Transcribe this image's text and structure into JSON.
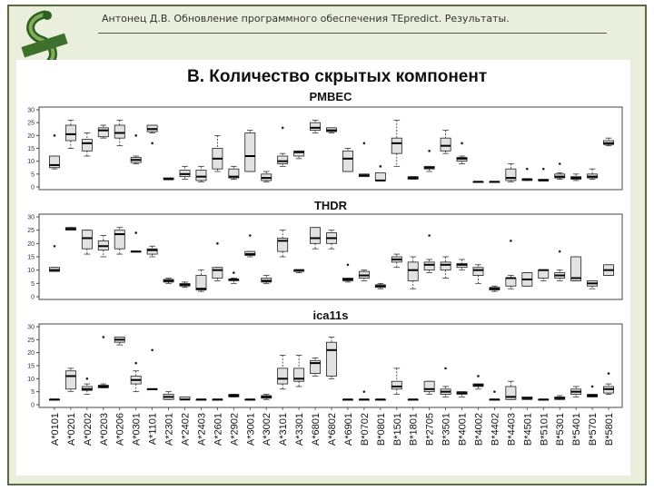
{
  "header": {
    "title": "Антонец Д.В. Обновление программного обеспечения TEpredict. Результаты."
  },
  "chart_data": {
    "type": "boxplot",
    "title": "B. Количество скрытых компонент",
    "categories": [
      "A*0101",
      "A*0201",
      "A*0202",
      "A*0203",
      "A*0206",
      "A*0301",
      "A*1101",
      "A*2301",
      "A*2402",
      "A*2403",
      "A*2601",
      "A*2902",
      "A*3001",
      "A*3002",
      "A*3101",
      "A*3301",
      "A*6801",
      "A*6802",
      "A*6901",
      "B*0702",
      "B*0801",
      "B*1501",
      "B*1801",
      "B*2705",
      "B*3501",
      "B*4001",
      "B*4002",
      "B*4402",
      "B*4403",
      "B*4501",
      "B*5101",
      "B*5301",
      "B*5401",
      "B*5701",
      "B*5801"
    ],
    "ylim": [
      0,
      30
    ],
    "yticks": [
      0,
      5,
      10,
      15,
      20,
      25,
      30
    ],
    "panels": [
      {
        "title": "PMBEC",
        "boxes": [
          {
            "min": 7,
            "q1": 7.5,
            "med": 8.5,
            "q3": 12,
            "max": 12,
            "out": [
              20
            ]
          },
          {
            "min": 15,
            "q1": 18,
            "med": 20.5,
            "q3": 24,
            "max": 26,
            "out": []
          },
          {
            "min": 12,
            "q1": 14,
            "med": 17,
            "q3": 18.5,
            "max": 21,
            "out": []
          },
          {
            "min": 19,
            "q1": 19.5,
            "med": 22,
            "q3": 23,
            "max": 24,
            "out": []
          },
          {
            "min": 16,
            "q1": 19,
            "med": 21,
            "q3": 24,
            "max": 26,
            "out": []
          },
          {
            "min": 9,
            "q1": 9.5,
            "med": 10.5,
            "q3": 11.5,
            "max": 12,
            "out": [
              20
            ]
          },
          {
            "min": 21,
            "q1": 21.5,
            "med": 22.5,
            "q3": 24,
            "max": 24,
            "out": [
              17
            ]
          },
          {
            "min": 3,
            "q1": 3,
            "med": 3,
            "q3": 3.5,
            "max": 3.5,
            "out": []
          },
          {
            "min": 3,
            "q1": 4,
            "med": 5,
            "q3": 6.5,
            "max": 8,
            "out": []
          },
          {
            "min": 2,
            "q1": 2.5,
            "med": 4,
            "q3": 6.5,
            "max": 8,
            "out": []
          },
          {
            "min": 6,
            "q1": 7,
            "med": 11,
            "q3": 15,
            "max": 20,
            "out": []
          },
          {
            "min": 3,
            "q1": 3.5,
            "med": 4,
            "q3": 7,
            "max": 8,
            "out": []
          },
          {
            "min": 6,
            "q1": 6,
            "med": 12,
            "q3": 21,
            "max": 22,
            "out": []
          },
          {
            "min": 2,
            "q1": 2.5,
            "med": 3.5,
            "q3": 5,
            "max": 6,
            "out": []
          },
          {
            "min": 8,
            "q1": 9,
            "med": 10,
            "q3": 12,
            "max": 13,
            "out": [
              23
            ]
          },
          {
            "min": 11,
            "q1": 12,
            "med": 13.5,
            "q3": 14,
            "max": 14,
            "out": []
          },
          {
            "min": 21,
            "q1": 22,
            "med": 23,
            "q3": 25,
            "max": 26,
            "out": []
          },
          {
            "min": 21,
            "q1": 21.5,
            "med": 22,
            "q3": 23,
            "max": 23,
            "out": []
          },
          {
            "min": 6,
            "q1": 6,
            "med": 11,
            "q3": 14,
            "max": 15,
            "out": []
          },
          {
            "min": 4,
            "q1": 4,
            "med": 4.5,
            "q3": 5,
            "max": 5,
            "out": [
              17
            ]
          },
          {
            "min": 2.5,
            "q1": 2.5,
            "med": 2.5,
            "q3": 5.5,
            "max": 5.5,
            "out": [
              8
            ]
          },
          {
            "min": 8,
            "q1": 13,
            "med": 17,
            "q3": 19,
            "max": 26,
            "out": []
          },
          {
            "min": 3,
            "q1": 3,
            "med": 3.5,
            "q3": 4,
            "max": 4,
            "out": []
          },
          {
            "min": 6,
            "q1": 7,
            "med": 7.5,
            "q3": 8,
            "max": 8,
            "out": [
              14
            ]
          },
          {
            "min": 13,
            "q1": 14,
            "med": 16,
            "q3": 19,
            "max": 22,
            "out": []
          },
          {
            "min": 9,
            "q1": 10,
            "med": 11,
            "q3": 11.5,
            "max": 12,
            "out": [
              17
            ]
          },
          {
            "min": 2,
            "q1": 2,
            "med": 2,
            "q3": 2,
            "max": 2,
            "out": []
          },
          {
            "min": 2,
            "q1": 2,
            "med": 2,
            "q3": 2,
            "max": 2,
            "out": []
          },
          {
            "min": 2,
            "q1": 2.5,
            "med": 3.5,
            "q3": 7,
            "max": 9,
            "out": []
          },
          {
            "min": 2.5,
            "q1": 2.5,
            "med": 3,
            "q3": 3,
            "max": 3,
            "out": [
              7
            ]
          },
          {
            "min": 2.5,
            "q1": 2.5,
            "med": 2.5,
            "q3": 3,
            "max": 3,
            "out": [
              7
            ]
          },
          {
            "min": 3,
            "q1": 3.5,
            "med": 4,
            "q3": 5,
            "max": 5.5,
            "out": [
              9
            ]
          },
          {
            "min": 2.5,
            "q1": 3,
            "med": 3.5,
            "q3": 4,
            "max": 5,
            "out": []
          },
          {
            "min": 3,
            "q1": 3.5,
            "med": 4,
            "q3": 5,
            "max": 7,
            "out": []
          },
          {
            "min": 16,
            "q1": 16.5,
            "med": 17,
            "q3": 18,
            "max": 19,
            "out": []
          }
        ]
      },
      {
        "title": "THDR",
        "boxes": [
          {
            "min": 9.5,
            "q1": 9.5,
            "med": 10,
            "q3": 11,
            "max": 11,
            "out": [
              19
            ]
          },
          {
            "min": 25,
            "q1": 25,
            "med": 25.5,
            "q3": 26,
            "max": 26,
            "out": []
          },
          {
            "min": 16,
            "q1": 18,
            "med": 22,
            "q3": 25,
            "max": 25,
            "out": []
          },
          {
            "min": 15,
            "q1": 17.5,
            "med": 19,
            "q3": 21,
            "max": 23,
            "out": []
          },
          {
            "min": 16,
            "q1": 18,
            "med": 23.5,
            "q3": 25,
            "max": 26,
            "out": []
          },
          {
            "min": 17,
            "q1": 17,
            "med": 17,
            "q3": 17,
            "max": 17,
            "out": [
              24
            ]
          },
          {
            "min": 15,
            "q1": 16,
            "med": 17.5,
            "q3": 18,
            "max": 19,
            "out": []
          },
          {
            "min": 5,
            "q1": 5.5,
            "med": 6,
            "q3": 6.5,
            "max": 7,
            "out": []
          },
          {
            "min": 3.5,
            "q1": 4,
            "med": 4.5,
            "q3": 5,
            "max": 5.5,
            "out": []
          },
          {
            "min": 2,
            "q1": 2.5,
            "med": 3,
            "q3": 8,
            "max": 10,
            "out": []
          },
          {
            "min": 6,
            "q1": 7,
            "med": 10,
            "q3": 11,
            "max": 11,
            "out": [
              20
            ]
          },
          {
            "min": 5,
            "q1": 6,
            "med": 6.5,
            "q3": 6.5,
            "max": 7,
            "out": [
              9
            ]
          },
          {
            "min": 15,
            "q1": 15.5,
            "med": 16,
            "q3": 17,
            "max": 17,
            "out": [
              23
            ]
          },
          {
            "min": 5,
            "q1": 5.5,
            "med": 6,
            "q3": 7,
            "max": 8,
            "out": []
          },
          {
            "min": 15,
            "q1": 17,
            "med": 21,
            "q3": 22,
            "max": 25,
            "out": []
          },
          {
            "min": 9,
            "q1": 9.5,
            "med": 10,
            "q3": 10,
            "max": 10,
            "out": []
          },
          {
            "min": 18,
            "q1": 20,
            "med": 22,
            "q3": 26,
            "max": 26,
            "out": []
          },
          {
            "min": 18,
            "q1": 20,
            "med": 22,
            "q3": 24,
            "max": 25,
            "out": []
          },
          {
            "min": 5.5,
            "q1": 6,
            "med": 6.5,
            "q3": 7,
            "max": 7,
            "out": [
              12
            ]
          },
          {
            "min": 6,
            "q1": 7,
            "med": 8,
            "q3": 9.5,
            "max": 10,
            "out": []
          },
          {
            "min": 3,
            "q1": 3.5,
            "med": 4,
            "q3": 4.5,
            "max": 5,
            "out": []
          },
          {
            "min": 11,
            "q1": 13,
            "med": 14,
            "q3": 15,
            "max": 16,
            "out": []
          },
          {
            "min": 3,
            "q1": 6,
            "med": 10,
            "q3": 13,
            "max": 15,
            "out": []
          },
          {
            "min": 9,
            "q1": 10,
            "med": 12,
            "q3": 13,
            "max": 14,
            "out": [
              23
            ]
          },
          {
            "min": 7,
            "q1": 10,
            "med": 12,
            "q3": 13,
            "max": 15,
            "out": []
          },
          {
            "min": 10,
            "q1": 11,
            "med": 12,
            "q3": 12.5,
            "max": 14,
            "out": []
          },
          {
            "min": 5,
            "q1": 8,
            "med": 10,
            "q3": 11,
            "max": 12,
            "out": []
          },
          {
            "min": 2,
            "q1": 2.5,
            "med": 3,
            "q3": 3.5,
            "max": 4,
            "out": []
          },
          {
            "min": 3,
            "q1": 4,
            "med": 7,
            "q3": 7,
            "max": 8,
            "out": [
              21
            ]
          },
          {
            "min": 4,
            "q1": 4,
            "med": 6.5,
            "q3": 9,
            "max": 9,
            "out": []
          },
          {
            "min": 6,
            "q1": 7,
            "med": 10,
            "q3": 10,
            "max": 10,
            "out": []
          },
          {
            "min": 6,
            "q1": 7,
            "med": 8,
            "q3": 9,
            "max": 10,
            "out": [
              17
            ]
          },
          {
            "min": 6,
            "q1": 6,
            "med": 7,
            "q3": 15,
            "max": 15,
            "out": []
          },
          {
            "min": 3,
            "q1": 4,
            "med": 5,
            "q3": 6,
            "max": 6,
            "out": []
          },
          {
            "min": 8,
            "q1": 8,
            "med": 10,
            "q3": 12,
            "max": 12,
            "out": []
          }
        ]
      },
      {
        "title": "ica11s",
        "boxes": [
          {
            "min": 2,
            "q1": 2,
            "med": 2,
            "q3": 2,
            "max": 2,
            "out": []
          },
          {
            "min": 5,
            "q1": 6,
            "med": 11,
            "q3": 13,
            "max": 14,
            "out": []
          },
          {
            "min": 4,
            "q1": 5.5,
            "med": 6,
            "q3": 7,
            "max": 8,
            "out": [
              10
            ]
          },
          {
            "min": 6.5,
            "q1": 6.5,
            "med": 7,
            "q3": 7.5,
            "max": 8,
            "out": [
              26
            ]
          },
          {
            "min": 23,
            "q1": 24,
            "med": 25,
            "q3": 26,
            "max": 26,
            "out": []
          },
          {
            "min": 5,
            "q1": 8,
            "med": 9.5,
            "q3": 11,
            "max": 13,
            "out": [
              16
            ]
          },
          {
            "min": 6,
            "q1": 6,
            "med": 6,
            "q3": 6,
            "max": 6,
            "out": [
              21
            ]
          },
          {
            "min": 2,
            "q1": 2,
            "med": 3,
            "q3": 4,
            "max": 5,
            "out": []
          },
          {
            "min": 2,
            "q1": 2,
            "med": 2,
            "q3": 3,
            "max": 3,
            "out": []
          },
          {
            "min": 2,
            "q1": 2,
            "med": 2,
            "q3": 2,
            "max": 2,
            "out": []
          },
          {
            "min": 2,
            "q1": 2,
            "med": 2,
            "q3": 2,
            "max": 2,
            "out": []
          },
          {
            "min": 3,
            "q1": 3,
            "med": 3.5,
            "q3": 4,
            "max": 4,
            "out": []
          },
          {
            "min": 2,
            "q1": 2,
            "med": 2,
            "q3": 2,
            "max": 2,
            "out": []
          },
          {
            "min": 2,
            "q1": 2.5,
            "med": 3,
            "q3": 3.5,
            "max": 4,
            "out": []
          },
          {
            "min": 6,
            "q1": 8,
            "med": 10,
            "q3": 14,
            "max": 19,
            "out": []
          },
          {
            "min": 7,
            "q1": 9,
            "med": 10,
            "q3": 14,
            "max": 19,
            "out": []
          },
          {
            "min": 11,
            "q1": 12,
            "med": 16,
            "q3": 17,
            "max": 18,
            "out": []
          },
          {
            "min": 10,
            "q1": 11,
            "med": 21,
            "q3": 24,
            "max": 26,
            "out": []
          },
          {
            "min": 2,
            "q1": 2,
            "med": 2,
            "q3": 2,
            "max": 2,
            "out": []
          },
          {
            "min": 2,
            "q1": 2,
            "med": 2,
            "q3": 2,
            "max": 2,
            "out": [
              5
            ]
          },
          {
            "min": 2,
            "q1": 2,
            "med": 2,
            "q3": 2,
            "max": 2,
            "out": []
          },
          {
            "min": 4,
            "q1": 6,
            "med": 7,
            "q3": 9,
            "max": 14,
            "out": []
          },
          {
            "min": 2,
            "q1": 2,
            "med": 2,
            "q3": 2,
            "max": 2,
            "out": []
          },
          {
            "min": 4,
            "q1": 5,
            "med": 6,
            "q3": 9,
            "max": 9,
            "out": []
          },
          {
            "min": 3,
            "q1": 4,
            "med": 5,
            "q3": 6,
            "max": 7,
            "out": [
              14
            ]
          },
          {
            "min": 3,
            "q1": 4,
            "med": 4.5,
            "q3": 5,
            "max": 5,
            "out": []
          },
          {
            "min": 6,
            "q1": 7,
            "med": 7.5,
            "q3": 8,
            "max": 8,
            "out": [
              11
            ]
          },
          {
            "min": 2,
            "q1": 2,
            "med": 2,
            "q3": 2,
            "max": 2,
            "out": [
              5
            ]
          },
          {
            "min": 2,
            "q1": 2,
            "med": 3,
            "q3": 7,
            "max": 9,
            "out": []
          },
          {
            "min": 2,
            "q1": 2,
            "med": 2.5,
            "q3": 3,
            "max": 3,
            "out": []
          },
          {
            "min": 2,
            "q1": 2,
            "med": 2,
            "q3": 2,
            "max": 2,
            "out": []
          },
          {
            "min": 2,
            "q1": 2,
            "med": 2.5,
            "q3": 3,
            "max": 3.5,
            "out": []
          },
          {
            "min": 3,
            "q1": 4,
            "med": 5,
            "q3": 6,
            "max": 7,
            "out": []
          },
          {
            "min": 3,
            "q1": 3,
            "med": 3.5,
            "q3": 4,
            "max": 4,
            "out": [
              7
            ]
          },
          {
            "min": 4,
            "q1": 4.5,
            "med": 6,
            "q3": 7,
            "max": 8,
            "out": [
              12
            ]
          }
        ]
      }
    ]
  }
}
